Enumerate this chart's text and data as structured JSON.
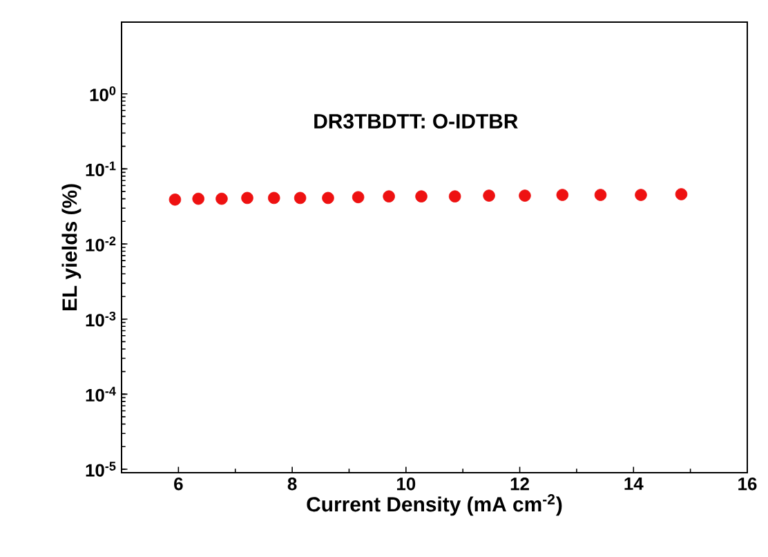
{
  "chart_data": {
    "type": "scatter",
    "xlabel": "Current Density (mA cm$^{-2}$)",
    "ylabel": "EL yields (%)",
    "annotations": [
      "DR3TBDTT: O-IDTBR"
    ],
    "x": [
      5.94,
      6.35,
      6.76,
      7.21,
      7.68,
      8.14,
      8.63,
      9.16,
      9.7,
      10.27,
      10.86,
      11.46,
      12.09,
      12.75,
      13.42,
      14.13,
      14.84
    ],
    "series": [
      {
        "color": "#ee1111",
        "values": [
          0.039,
          0.04,
          0.04,
          0.041,
          0.041,
          0.041,
          0.041,
          0.042,
          0.043,
          0.043,
          0.043,
          0.044,
          0.044,
          0.045,
          0.045,
          0.045,
          0.046
        ]
      }
    ],
    "marker": "circle",
    "log": "y",
    "xlim": [
      5,
      16
    ],
    "ylim": [
      9e-06,
      9
    ],
    "xticks": [
      6,
      8,
      10,
      12,
      14,
      16
    ],
    "yticks": [
      {
        "value": 1e-05,
        "label": "10$^{-5}$"
      },
      {
        "value": 0.0001,
        "label": "10$^{-4}$"
      },
      {
        "value": 0.001,
        "label": "10$^{-3}$"
      },
      {
        "value": 0.01,
        "label": "10$^{-2}$"
      },
      {
        "value": 0.1,
        "label": "10$^{-1}$"
      },
      {
        "value": 1,
        "label": "10$^{0}$"
      }
    ],
    "grid": false
  }
}
